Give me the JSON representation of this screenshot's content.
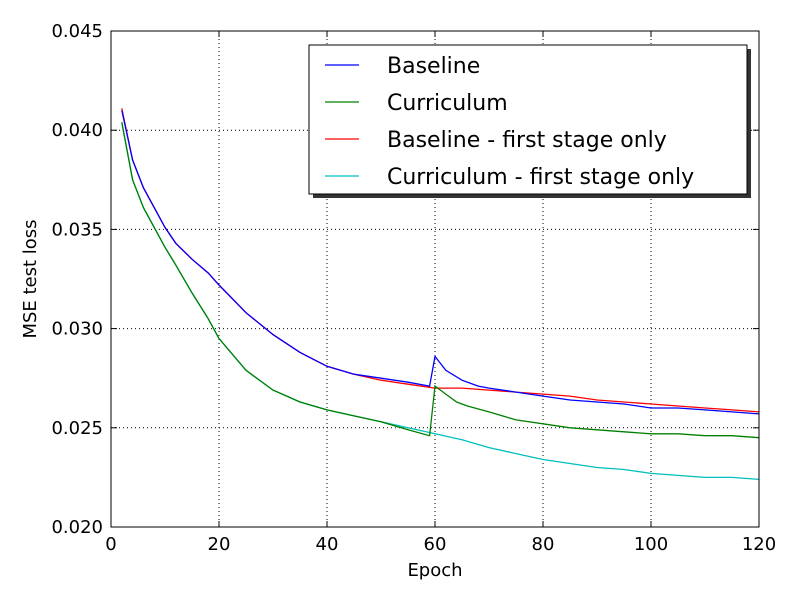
{
  "chart_data": {
    "type": "line",
    "title": "",
    "xlabel": "Epoch",
    "ylabel": "MSE test loss",
    "xlim": [
      0,
      120
    ],
    "ylim": [
      0.02,
      0.045
    ],
    "x_ticks": [
      0,
      20,
      40,
      60,
      80,
      100,
      120
    ],
    "y_ticks": [
      0.02,
      0.025,
      0.03,
      0.035,
      0.04,
      0.045
    ],
    "x_tick_labels": [
      "0",
      "20",
      "40",
      "60",
      "80",
      "100",
      "120"
    ],
    "y_tick_labels": [
      "0.020",
      "0.025",
      "0.030",
      "0.035",
      "0.040",
      "0.045"
    ],
    "grid": true,
    "legend_position": "top-right",
    "series": [
      {
        "name": "Baseline",
        "color": "#0000ff",
        "points": [
          [
            2,
            0.041
          ],
          [
            4,
            0.0385
          ],
          [
            6,
            0.0371
          ],
          [
            8,
            0.0361
          ],
          [
            10,
            0.0351
          ],
          [
            12,
            0.0343
          ],
          [
            15,
            0.0335
          ],
          [
            18,
            0.0328
          ],
          [
            20,
            0.0322
          ],
          [
            25,
            0.0308
          ],
          [
            30,
            0.0297
          ],
          [
            35,
            0.0288
          ],
          [
            40,
            0.0281
          ],
          [
            45,
            0.0277
          ],
          [
            50,
            0.0275
          ],
          [
            55,
            0.0273
          ],
          [
            59,
            0.0271
          ],
          [
            60,
            0.0286
          ],
          [
            62,
            0.0279
          ],
          [
            65,
            0.0274
          ],
          [
            68,
            0.0271
          ],
          [
            70,
            0.027
          ],
          [
            75,
            0.0268
          ],
          [
            80,
            0.0266
          ],
          [
            85,
            0.0264
          ],
          [
            90,
            0.0263
          ],
          [
            95,
            0.0262
          ],
          [
            100,
            0.026
          ],
          [
            105,
            0.026
          ],
          [
            110,
            0.0259
          ],
          [
            115,
            0.0258
          ],
          [
            120,
            0.0257
          ]
        ]
      },
      {
        "name": "Curriculum",
        "color": "#008000",
        "points": [
          [
            2,
            0.0404
          ],
          [
            4,
            0.0375
          ],
          [
            6,
            0.0361
          ],
          [
            8,
            0.0351
          ],
          [
            10,
            0.0341
          ],
          [
            12,
            0.0332
          ],
          [
            15,
            0.0318
          ],
          [
            18,
            0.0305
          ],
          [
            20,
            0.0295
          ],
          [
            25,
            0.0279
          ],
          [
            30,
            0.0269
          ],
          [
            35,
            0.0263
          ],
          [
            40,
            0.0259
          ],
          [
            45,
            0.0256
          ],
          [
            50,
            0.0253
          ],
          [
            55,
            0.0249
          ],
          [
            59,
            0.0246
          ],
          [
            60,
            0.0271
          ],
          [
            62,
            0.0267
          ],
          [
            64,
            0.0263
          ],
          [
            66,
            0.0261
          ],
          [
            70,
            0.0258
          ],
          [
            75,
            0.0254
          ],
          [
            80,
            0.0252
          ],
          [
            85,
            0.025
          ],
          [
            90,
            0.0249
          ],
          [
            95,
            0.0248
          ],
          [
            100,
            0.0247
          ],
          [
            105,
            0.0247
          ],
          [
            110,
            0.0246
          ],
          [
            115,
            0.0246
          ],
          [
            120,
            0.0245
          ]
        ]
      },
      {
        "name": "Baseline - first stage only",
        "color": "#ff0000",
        "points": [
          [
            2,
            0.0411
          ],
          [
            4,
            0.0385
          ],
          [
            6,
            0.0371
          ],
          [
            8,
            0.0361
          ],
          [
            10,
            0.0351
          ],
          [
            12,
            0.0343
          ],
          [
            15,
            0.0335
          ],
          [
            18,
            0.0328
          ],
          [
            20,
            0.0322
          ],
          [
            25,
            0.0308
          ],
          [
            30,
            0.0297
          ],
          [
            35,
            0.0288
          ],
          [
            40,
            0.0281
          ],
          [
            45,
            0.0277
          ],
          [
            50,
            0.0274
          ],
          [
            55,
            0.0272
          ],
          [
            60,
            0.027
          ],
          [
            65,
            0.027
          ],
          [
            70,
            0.0269
          ],
          [
            75,
            0.0268
          ],
          [
            80,
            0.0267
          ],
          [
            85,
            0.0266
          ],
          [
            90,
            0.0264
          ],
          [
            95,
            0.0263
          ],
          [
            100,
            0.0262
          ],
          [
            105,
            0.0261
          ],
          [
            110,
            0.026
          ],
          [
            115,
            0.0259
          ],
          [
            120,
            0.0258
          ]
        ]
      },
      {
        "name": "Curriculum - first stage only",
        "color": "#00bfbf",
        "points": [
          [
            2,
            0.0404
          ],
          [
            4,
            0.0375
          ],
          [
            6,
            0.0361
          ],
          [
            8,
            0.0351
          ],
          [
            10,
            0.0341
          ],
          [
            12,
            0.0332
          ],
          [
            15,
            0.0318
          ],
          [
            18,
            0.0305
          ],
          [
            20,
            0.0295
          ],
          [
            25,
            0.0279
          ],
          [
            30,
            0.0269
          ],
          [
            35,
            0.0263
          ],
          [
            40,
            0.0259
          ],
          [
            45,
            0.0256
          ],
          [
            50,
            0.0253
          ],
          [
            55,
            0.025
          ],
          [
            60,
            0.0247
          ],
          [
            65,
            0.0244
          ],
          [
            70,
            0.024
          ],
          [
            75,
            0.0237
          ],
          [
            80,
            0.0234
          ],
          [
            85,
            0.0232
          ],
          [
            90,
            0.023
          ],
          [
            95,
            0.0229
          ],
          [
            100,
            0.0227
          ],
          [
            105,
            0.0226
          ],
          [
            110,
            0.0225
          ],
          [
            115,
            0.0225
          ],
          [
            120,
            0.0224
          ]
        ]
      }
    ]
  }
}
